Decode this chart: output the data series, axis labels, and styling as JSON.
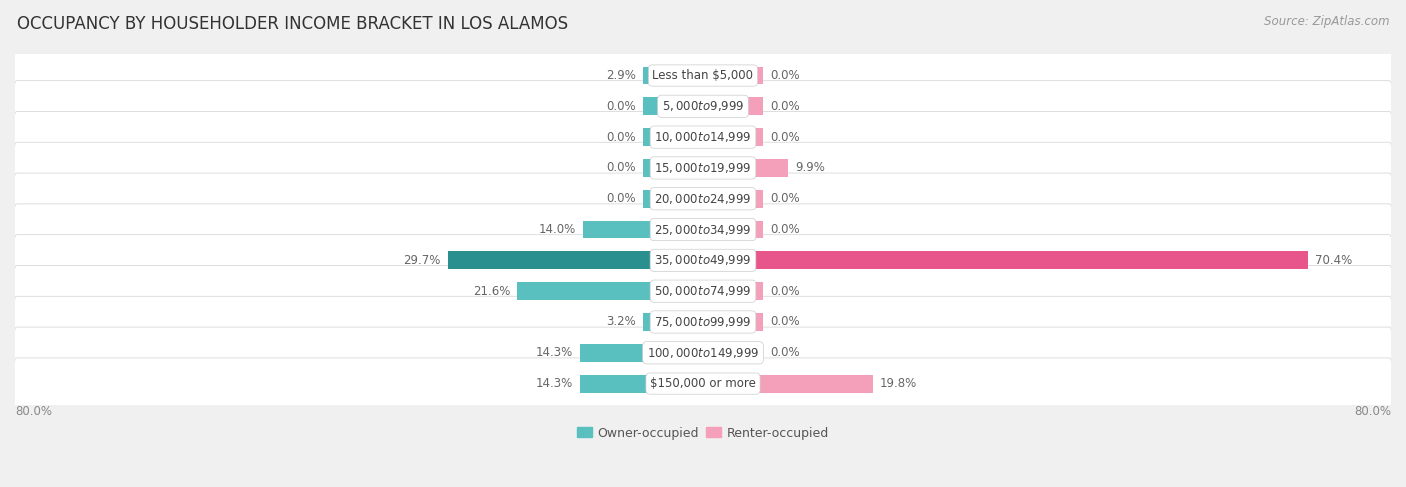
{
  "title": "OCCUPANCY BY HOUSEHOLDER INCOME BRACKET IN LOS ALAMOS",
  "source": "Source: ZipAtlas.com",
  "categories": [
    "Less than $5,000",
    "$5,000 to $9,999",
    "$10,000 to $14,999",
    "$15,000 to $19,999",
    "$20,000 to $24,999",
    "$25,000 to $34,999",
    "$35,000 to $49,999",
    "$50,000 to $74,999",
    "$75,000 to $99,999",
    "$100,000 to $149,999",
    "$150,000 or more"
  ],
  "owner_values": [
    2.9,
    0.0,
    0.0,
    0.0,
    0.0,
    14.0,
    29.7,
    21.6,
    3.2,
    14.3,
    14.3
  ],
  "renter_values": [
    0.0,
    0.0,
    0.0,
    9.9,
    0.0,
    0.0,
    70.4,
    0.0,
    0.0,
    0.0,
    19.8
  ],
  "owner_color_light": "#5abfbf",
  "owner_color_dark": "#2a8f8f",
  "renter_color_light": "#f4a0bb",
  "renter_color_dark": "#e8558a",
  "bg_color": "#f0f0f0",
  "row_bg_color": "#ffffff",
  "row_border_color": "#d8d8d8",
  "axis_max": 80.0,
  "min_bar_width": 7.0,
  "title_fontsize": 12,
  "source_fontsize": 8.5,
  "value_fontsize": 8.5,
  "category_fontsize": 8.5,
  "legend_fontsize": 9,
  "bar_height": 0.58,
  "axis_label_color": "#888888",
  "value_label_color": "#666666"
}
